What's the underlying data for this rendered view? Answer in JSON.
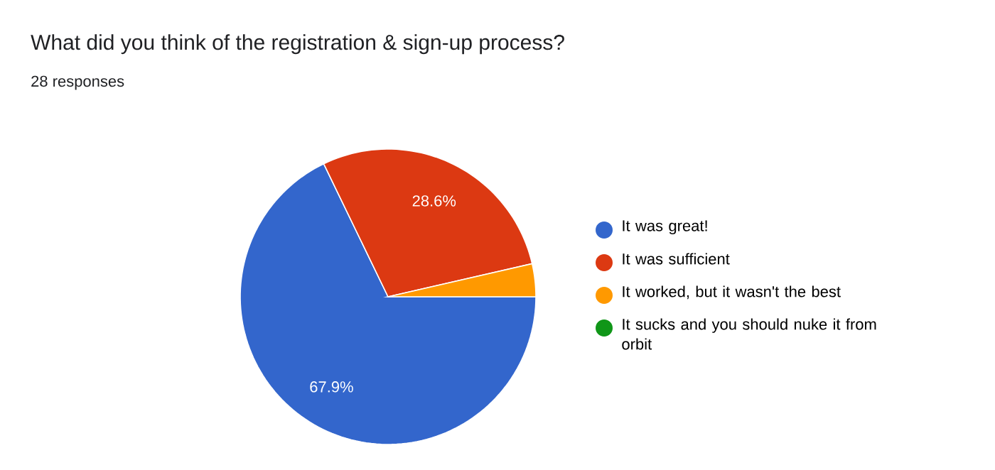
{
  "chart_data": {
    "type": "pie",
    "title": "What did you think of the registration & sign-up process?",
    "subtitle": "28 responses",
    "categories": [
      "It was great!",
      "It was sufficient",
      "It worked, but it wasn't the best",
      "It sucks and you should nuke it from orbit"
    ],
    "values": [
      67.9,
      28.6,
      3.6,
      0
    ],
    "colors": [
      "#3366cc",
      "#dc3912",
      "#ff9900",
      "#109618"
    ],
    "value_labels": [
      "67.9%",
      "28.6%",
      null,
      null
    ],
    "legend": "right"
  }
}
